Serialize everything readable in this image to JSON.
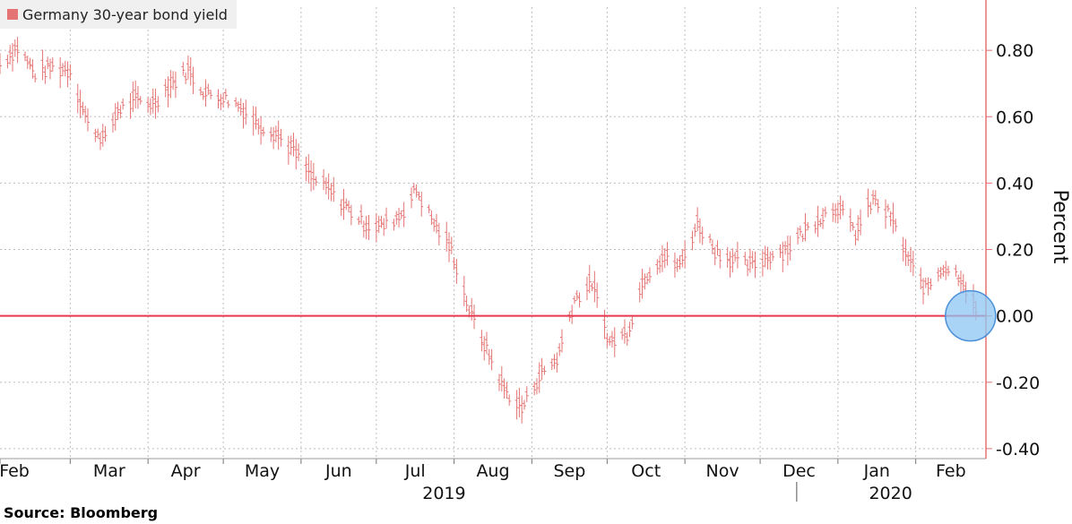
{
  "colors": {
    "series": "#e57373",
    "zero_line": "#e63950",
    "highlight_fill": "#8ec5f2",
    "highlight_stroke": "#4a90d9",
    "axis": "#e57373",
    "grid": "#bdbdbd"
  },
  "source": "Source: Bloomberg",
  "chart_data": {
    "type": "line",
    "style": "ohlc-bars",
    "x_start": "2019-02-01",
    "x_end": "2020-02-29",
    "xlabels": [
      {
        "label": "Feb",
        "date": "2019-02-01"
      },
      {
        "label": "Mar",
        "date": "2019-03-01"
      },
      {
        "label": "Apr",
        "date": "2019-04-01"
      },
      {
        "label": "May",
        "date": "2019-05-01"
      },
      {
        "label": "Jun",
        "date": "2019-06-01"
      },
      {
        "label": "Jul",
        "date": "2019-07-01"
      },
      {
        "label": "Aug",
        "date": "2019-08-01"
      },
      {
        "label": "Sep",
        "date": "2019-09-01"
      },
      {
        "label": "Oct",
        "date": "2019-10-01"
      },
      {
        "label": "Nov",
        "date": "2019-11-01"
      },
      {
        "label": "Dec",
        "date": "2019-12-01"
      },
      {
        "label": "Jan",
        "date": "2020-01-01"
      },
      {
        "label": "Feb",
        "date": "2020-02-01"
      }
    ],
    "year_labels": [
      {
        "label": "2019",
        "date": "2019-07-28"
      },
      {
        "label": "2020",
        "date": "2020-01-22"
      }
    ],
    "ylim": [
      -0.43,
      0.93
    ],
    "yticks": [
      {
        "value": 0.8,
        "label": "0.80"
      },
      {
        "value": 0.6,
        "label": "0.60"
      },
      {
        "value": 0.4,
        "label": "0.40"
      },
      {
        "value": 0.2,
        "label": "0.20"
      },
      {
        "value": 0.0,
        "label": "0.00"
      },
      {
        "value": -0.2,
        "label": "-0.20"
      },
      {
        "value": -0.4,
        "label": "-0.40"
      }
    ],
    "ylabel": "Percent",
    "xlabel": "",
    "title": "",
    "grid": true,
    "legend_position": "top-left",
    "series": [
      {
        "name": "Germany 30-year bond yield",
        "x": [
          "2019-02-01",
          "2019-02-08",
          "2019-02-15",
          "2019-02-22",
          "2019-03-01",
          "2019-03-08",
          "2019-03-15",
          "2019-03-20",
          "2019-03-27",
          "2019-04-03",
          "2019-04-10",
          "2019-04-17",
          "2019-04-24",
          "2019-05-01",
          "2019-05-08",
          "2019-05-15",
          "2019-05-22",
          "2019-05-29",
          "2019-06-05",
          "2019-06-12",
          "2019-06-19",
          "2019-06-26",
          "2019-07-03",
          "2019-07-10",
          "2019-07-17",
          "2019-07-24",
          "2019-07-31",
          "2019-08-07",
          "2019-08-14",
          "2019-08-21",
          "2019-08-28",
          "2019-09-04",
          "2019-09-11",
          "2019-09-18",
          "2019-09-25",
          "2019-10-02",
          "2019-10-09",
          "2019-10-16",
          "2019-10-23",
          "2019-10-30",
          "2019-11-06",
          "2019-11-13",
          "2019-11-20",
          "2019-11-27",
          "2019-12-04",
          "2019-12-11",
          "2019-12-18",
          "2019-12-25",
          "2020-01-01",
          "2020-01-08",
          "2020-01-15",
          "2020-01-22",
          "2020-01-29",
          "2020-02-05",
          "2020-02-12",
          "2020-02-19",
          "2020-02-25"
        ],
        "values": [
          0.76,
          0.81,
          0.73,
          0.75,
          0.74,
          0.58,
          0.53,
          0.62,
          0.65,
          0.64,
          0.7,
          0.74,
          0.67,
          0.66,
          0.63,
          0.58,
          0.55,
          0.5,
          0.42,
          0.38,
          0.33,
          0.28,
          0.27,
          0.3,
          0.38,
          0.28,
          0.2,
          0.02,
          -0.1,
          -0.22,
          -0.28,
          -0.18,
          -0.13,
          0.05,
          0.1,
          -0.08,
          -0.05,
          0.12,
          0.18,
          0.15,
          0.28,
          0.2,
          0.17,
          0.15,
          0.18,
          0.2,
          0.25,
          0.3,
          0.33,
          0.25,
          0.35,
          0.3,
          0.17,
          0.08,
          0.15,
          0.12,
          0.02
        ]
      }
    ],
    "annotations": [
      {
        "type": "circle",
        "date": "2020-02-25",
        "value": 0.0
      }
    ]
  }
}
